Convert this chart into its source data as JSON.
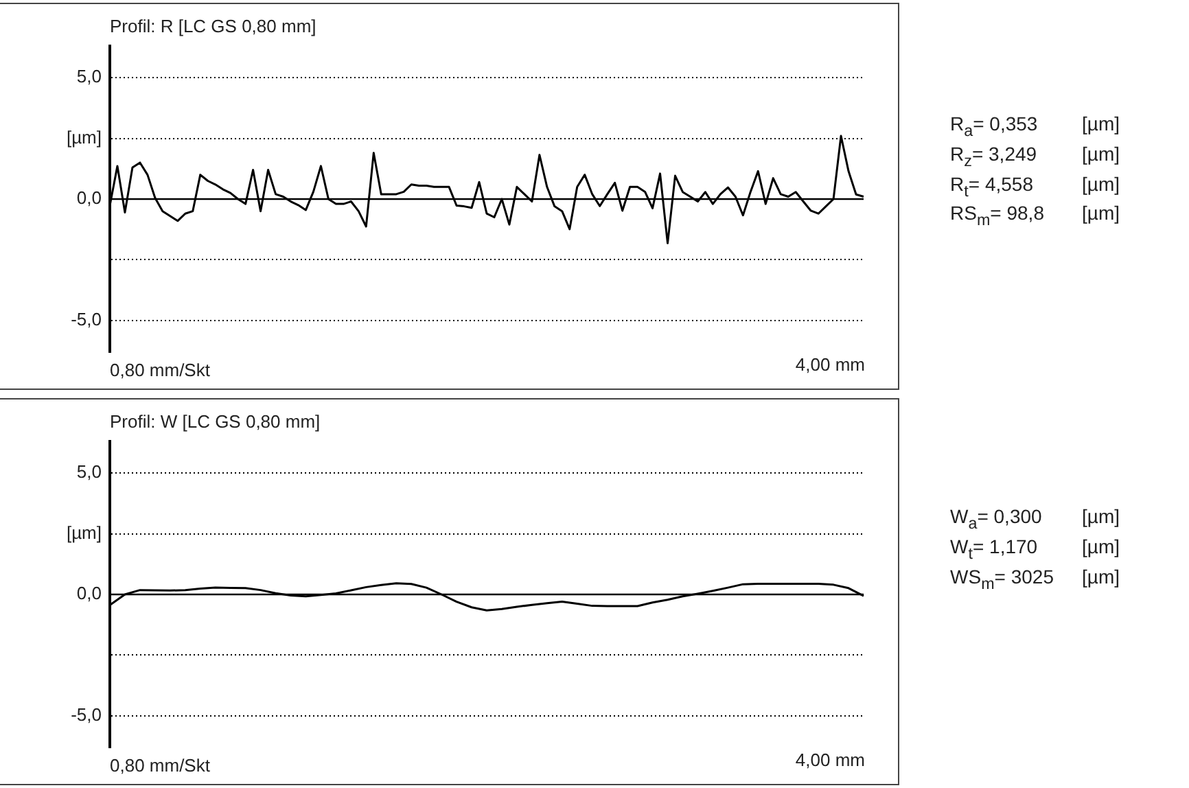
{
  "chart_data": [
    {
      "type": "line",
      "title": "Profil: R [LC GS 0,80 mm]",
      "xlabel": "0,80 mm/Skt",
      "ylim": [
        -6.3,
        6.3
      ],
      "yticks": [
        {
          "value": 5,
          "label": "5,0"
        },
        {
          "value": 2.5,
          "label": "[µm]"
        },
        {
          "value": 0,
          "label": "0,0"
        },
        {
          "value": -2.5,
          "label": null
        },
        {
          "value": -5,
          "label": "-5,0"
        }
      ],
      "grid": "y",
      "tick_labels": "y",
      "marker": "none",
      "line_style": "solid",
      "legend": false,
      "ref_lines": [
        {
          "axis": "y",
          "value": 0,
          "color": "#000000"
        }
      ],
      "categories": [
        null,
        null,
        null,
        null,
        null,
        null,
        null,
        null,
        null,
        null,
        null,
        null,
        null,
        null,
        null,
        null,
        null,
        null,
        null,
        null,
        null,
        null,
        null,
        null,
        null,
        null,
        null,
        null,
        null,
        null,
        null,
        null,
        null,
        null,
        null,
        null,
        null,
        null,
        null,
        null,
        null,
        null,
        null,
        null,
        null,
        null,
        null,
        null,
        null,
        null,
        null,
        null,
        null,
        null,
        null,
        null,
        null,
        null,
        null,
        null,
        null,
        null,
        null,
        null,
        null,
        null,
        null,
        null,
        null,
        null,
        null,
        null,
        null,
        null,
        null,
        null,
        null,
        null,
        null,
        null,
        null,
        null,
        null,
        null,
        null,
        null,
        null,
        null,
        null,
        null,
        null,
        null,
        null,
        null,
        null,
        null,
        null,
        null,
        null,
        null,
        null
      ],
      "series": [
        {
          "color": "#000000",
          "values": [
            -0.27,
            1.36,
            -0.55,
            1.3,
            1.5,
            1.0,
            0.05,
            -0.5,
            -0.7,
            -0.9,
            -0.6,
            -0.5,
            1.0,
            0.75,
            0.6,
            0.4,
            0.25,
            0,
            -0.2,
            1.2,
            -0.5,
            1.2,
            0.2,
            0.1,
            -0.1,
            -0.25,
            -0.45,
            0.3,
            1.36,
            0,
            -0.2,
            -0.2,
            -0.1,
            -0.5,
            -1.13,
            1.9,
            0.2,
            0.2,
            0.2,
            0.3,
            0.6,
            0.55,
            0.55,
            0.5,
            0.5,
            0.5,
            -0.27,
            -0.3,
            -0.36,
            0.7,
            -0.6,
            -0.75,
            0,
            -1.05,
            0.5,
            0.2,
            -0.1,
            1.82,
            0.5,
            -0.3,
            -0.5,
            -1.24,
            0.5,
            1.0,
            0.2,
            -0.29,
            0.2,
            0.67,
            -0.48,
            0.5,
            0.5,
            0.3,
            -0.38,
            1.05,
            -1.82,
            0.96,
            0.29,
            0.1,
            -0.1,
            0.29,
            -0.2,
            0.2,
            0.48,
            0.1,
            -0.67,
            0.3,
            1.15,
            -0.2,
            0.86,
            0.2,
            0.1,
            0.29,
            -0.1,
            -0.48,
            -0.6,
            -0.3,
            0,
            2.6,
            1.15,
            0.19,
            0.1
          ]
        }
      ],
      "annotations": [
        "4,00 mm",
        "R$_{a}$= 0,353 [µm]",
        "R$_{z}$= 3,249 [µm]",
        "R$_{t}$= 4,558 [µm]",
        "RS$_{m}$= 98,8 [µm]"
      ]
    },
    {
      "type": "line",
      "title": "Profil: W [LC GS 0,80 mm]",
      "xlabel": "0,80 mm/Skt",
      "ylim": [
        -6.3,
        6.3
      ],
      "yticks": [
        {
          "value": 5,
          "label": "5,0"
        },
        {
          "value": 2.5,
          "label": "[µm]"
        },
        {
          "value": 0,
          "label": "0,0"
        },
        {
          "value": -2.5,
          "label": null
        },
        {
          "value": -5,
          "label": "-5,0"
        }
      ],
      "grid": "y",
      "tick_labels": "y",
      "marker": "none",
      "line_style": "solid",
      "legend": false,
      "ref_lines": [
        {
          "axis": "y",
          "value": 0,
          "color": "#000000"
        }
      ],
      "categories": [
        null,
        null,
        null,
        null,
        null,
        null,
        null,
        null,
        null,
        null,
        null,
        null,
        null,
        null,
        null,
        null,
        null,
        null,
        null,
        null,
        null,
        null,
        null,
        null,
        null,
        null,
        null,
        null,
        null,
        null,
        null,
        null,
        null,
        null,
        null,
        null,
        null,
        null,
        null,
        null,
        null,
        null,
        null,
        null,
        null,
        null,
        null,
        null,
        null,
        null,
        null
      ],
      "series": [
        {
          "color": "#000000",
          "values": [
            -0.44,
            0,
            0.18,
            0.17,
            0.16,
            0.18,
            0.24,
            0.28,
            0.27,
            0.26,
            0.18,
            0.05,
            -0.04,
            -0.08,
            -0.02,
            0.04,
            0.17,
            0.3,
            0.39,
            0.46,
            0.43,
            0.28,
            0,
            -0.3,
            -0.53,
            -0.66,
            -0.6,
            -0.51,
            -0.43,
            -0.36,
            -0.3,
            -0.38,
            -0.47,
            -0.48,
            -0.48,
            -0.48,
            -0.33,
            -0.22,
            -0.08,
            0.03,
            0.15,
            0.28,
            0.42,
            0.44,
            0.44,
            0.44,
            0.44,
            0.44,
            0.4,
            0.26,
            -0.06
          ]
        }
      ],
      "annotations": [
        "4,00 mm",
        "W$_{a}$= 0,300 [µm]",
        "W$_{t}$= 1,170 [µm]",
        "WS$_{m}$= 3025 [µm]"
      ]
    }
  ]
}
